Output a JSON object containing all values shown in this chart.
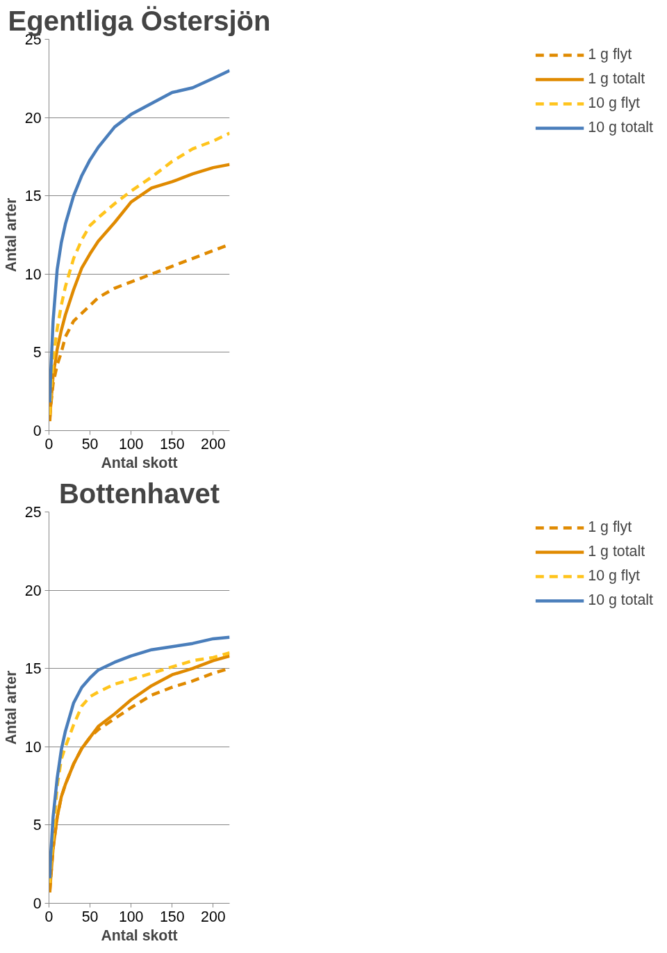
{
  "chart_data": [
    {
      "type": "line",
      "title": "Egentliga Östersjön",
      "xlabel": "Antal skott",
      "ylabel": "Antal arter",
      "xlim": [
        0,
        220
      ],
      "ylim": [
        0,
        25
      ],
      "xticks": [
        0,
        50,
        100,
        150,
        200
      ],
      "yticks": [
        0,
        5,
        10,
        15,
        20,
        25
      ],
      "grid": "y",
      "legend": "right",
      "marker": "none",
      "x": [
        1,
        2,
        5,
        10,
        15,
        20,
        30,
        40,
        50,
        60,
        80,
        100,
        125,
        150,
        175,
        200,
        220
      ],
      "series": [
        {
          "name": "1 g flyt",
          "color": "#e08a00",
          "line_style": "dashed",
          "values": [
            0.8,
            1.5,
            3,
            4.2,
            5.0,
            6.0,
            7.0,
            7.5,
            8.0,
            8.5,
            9.1,
            9.5,
            10.0,
            10.5,
            11,
            11.5,
            11.9
          ]
        },
        {
          "name": "1 g totalt",
          "color": "#e08a00",
          "line_style": "solid",
          "values": [
            0.6,
            1.5,
            3.5,
            5.2,
            6.4,
            7.4,
            9,
            10.4,
            11.3,
            12.1,
            13.3,
            14.6,
            15.5,
            15.9,
            16.4,
            16.8,
            17
          ]
        },
        {
          "name": "10 g flyt",
          "color": "#ffc41c",
          "line_style": "dashed",
          "values": [
            1.0,
            2,
            4.5,
            6.5,
            8,
            9.2,
            11,
            12.2,
            13.1,
            13.6,
            14.5,
            15.3,
            16.2,
            17.2,
            18,
            18.5,
            19
          ]
        },
        {
          "name": "10 g totalt",
          "color": "#4a7ebb",
          "line_style": "solid",
          "values": [
            1.8,
            3.5,
            7,
            10.3,
            12,
            13.2,
            15,
            16.3,
            17.3,
            18.1,
            19.4,
            20.2,
            20.9,
            21.6,
            21.9,
            22.5,
            23
          ]
        }
      ]
    },
    {
      "type": "line",
      "title": "Bottenhavet",
      "xlabel": "Antal skott",
      "ylabel": "Antal arter",
      "xlim": [
        0,
        220
      ],
      "ylim": [
        0,
        25
      ],
      "xticks": [
        0,
        50,
        100,
        150,
        200
      ],
      "yticks": [
        0,
        5,
        10,
        15,
        20,
        25
      ],
      "grid": "y",
      "legend": "right",
      "marker": "none",
      "x": [
        1,
        2,
        5,
        10,
        15,
        20,
        30,
        40,
        50,
        60,
        80,
        100,
        125,
        150,
        175,
        200,
        220
      ],
      "series": [
        {
          "name": "1 g flyt",
          "color": "#e08a00",
          "line_style": "dashed",
          "values": [
            0.8,
            1.5,
            3.5,
            5.5,
            6.8,
            7.6,
            8.9,
            9.9,
            10.6,
            11.1,
            11.8,
            12.5,
            13.3,
            13.8,
            14.2,
            14.7,
            15
          ]
        },
        {
          "name": "1 g totalt",
          "color": "#e08a00",
          "line_style": "solid",
          "values": [
            0.7,
            1.5,
            3.5,
            5.5,
            6.8,
            7.6,
            8.9,
            9.9,
            10.6,
            11.3,
            12.1,
            13.0,
            13.9,
            14.6,
            15.0,
            15.5,
            15.8
          ]
        },
        {
          "name": "10 g flyt",
          "color": "#ffc41c",
          "line_style": "dashed",
          "values": [
            1.3,
            2.2,
            4.2,
            7.5,
            9.2,
            10.0,
            11.4,
            12.6,
            13.2,
            13.5,
            14.0,
            14.3,
            14.7,
            15.1,
            15.5,
            15.7,
            16
          ]
        },
        {
          "name": "10 g totalt",
          "color": "#4a7ebb",
          "line_style": "solid",
          "values": [
            1.6,
            3,
            5.5,
            8.0,
            9.8,
            11.0,
            12.8,
            13.8,
            14.4,
            14.9,
            15.4,
            15.8,
            16.2,
            16.4,
            16.6,
            16.9,
            17
          ]
        }
      ]
    }
  ]
}
